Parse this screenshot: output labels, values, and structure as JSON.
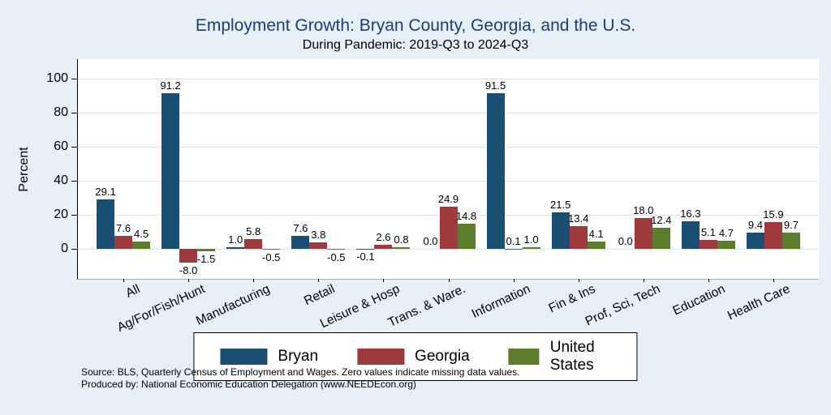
{
  "colors": {
    "background": "#e7f0f7",
    "plot_background": "#ffffff",
    "title": "#1c3e75",
    "gridline": "#d8e6ee",
    "bryan": "#1b4f72",
    "georgia": "#9e3a3d",
    "united_states": "#5d7d2c"
  },
  "notes": {
    "line1": "Source: BLS, Quarterly Census of Employment and Wages. Zero values indicate missing data values.",
    "line2": "Produced by: National Economic Education Delegation (www.NEEDEcon.org)"
  },
  "chart_data": {
    "type": "bar",
    "title": "Employment Growth: Bryan County, Georgia, and the U.S.",
    "subtitle": "During Pandemic: 2019-Q3 to 2024-Q3",
    "xlabel": "",
    "ylabel": "Percent",
    "ylim": [
      -10,
      105
    ],
    "yticks": [
      0,
      20,
      40,
      60,
      80,
      100
    ],
    "grid": true,
    "legend_position": "bottom",
    "value_labels": true,
    "categories": [
      "All",
      "Ag/For/Fish/Hunt",
      "Manufacturing",
      "Retail",
      "Leisure & Hosp",
      "Trans. & Ware.",
      "Information",
      "Fin & Ins",
      "Prof, Sci, Tech",
      "Education",
      "Health Care"
    ],
    "series": [
      {
        "name": "Bryan",
        "color": "#1b4f72",
        "values": [
          29.1,
          91.2,
          1.0,
          7.6,
          -0.1,
          0.0,
          91.5,
          21.5,
          0.0,
          16.3,
          9.4
        ]
      },
      {
        "name": "Georgia",
        "color": "#9e3a3d",
        "values": [
          7.6,
          -8.0,
          5.8,
          3.8,
          2.6,
          24.9,
          0.1,
          13.4,
          18.0,
          5.1,
          15.9
        ]
      },
      {
        "name": "United States",
        "color": "#5d7d2c",
        "values": [
          4.5,
          -1.5,
          -0.5,
          -0.5,
          0.8,
          14.8,
          1.0,
          4.1,
          12.4,
          4.7,
          9.7
        ]
      }
    ]
  }
}
